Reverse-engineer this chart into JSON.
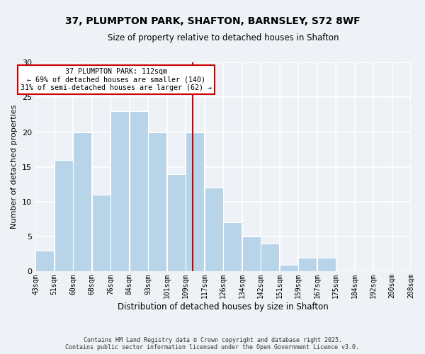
{
  "title": "37, PLUMPTON PARK, SHAFTON, BARNSLEY, S72 8WF",
  "subtitle": "Size of property relative to detached houses in Shafton",
  "xlabel": "Distribution of detached houses by size in Shafton",
  "ylabel": "Number of detached properties",
  "bar_color": "#b8d4e8",
  "bar_edge_color": "#ffffff",
  "bins": [
    43,
    51,
    60,
    68,
    76,
    84,
    93,
    101,
    109,
    117,
    126,
    134,
    142,
    151,
    159,
    167,
    175,
    184,
    192,
    200,
    208
  ],
  "counts": [
    3,
    16,
    20,
    11,
    23,
    23,
    20,
    14,
    20,
    12,
    7,
    5,
    4,
    1,
    2,
    2,
    0,
    0,
    0,
    0
  ],
  "tick_labels": [
    "43sqm",
    "51sqm",
    "60sqm",
    "68sqm",
    "76sqm",
    "84sqm",
    "93sqm",
    "101sqm",
    "109sqm",
    "117sqm",
    "126sqm",
    "134sqm",
    "142sqm",
    "151sqm",
    "159sqm",
    "167sqm",
    "175sqm",
    "184sqm",
    "192sqm",
    "200sqm",
    "208sqm"
  ],
  "vline_x": 112,
  "vline_color": "#cc0000",
  "annotation_box_color": "#cc0000",
  "annotation_line1": "37 PLUMPTON PARK: 112sqm",
  "annotation_line2": "← 69% of detached houses are smaller (140)",
  "annotation_line3": "31% of semi-detached houses are larger (62) →",
  "ylim": [
    0,
    30
  ],
  "yticks": [
    0,
    5,
    10,
    15,
    20,
    25,
    30
  ],
  "footnote1": "Contains HM Land Registry data © Crown copyright and database right 2025.",
  "footnote2": "Contains public sector information licensed under the Open Government Licence v3.0.",
  "background_color": "#eef2f7",
  "grid_color": "#ffffff"
}
